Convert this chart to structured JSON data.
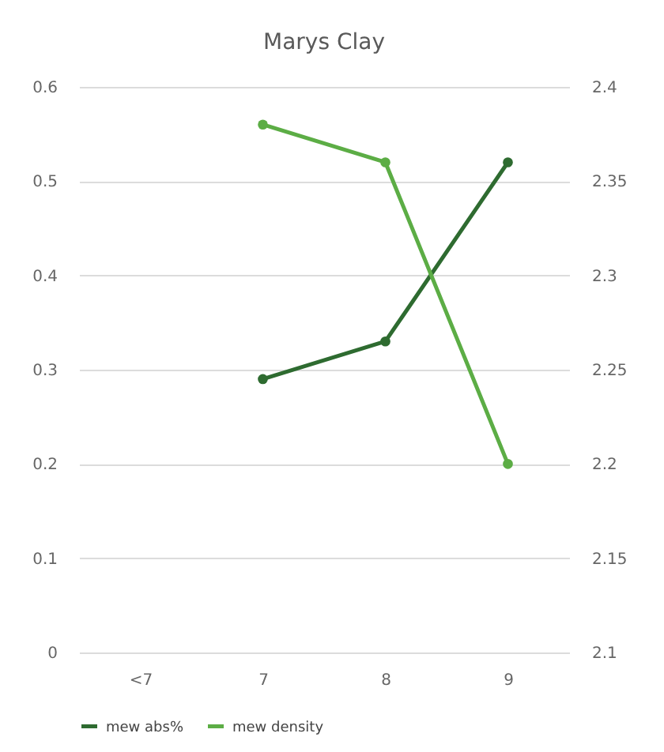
{
  "chart_data": {
    "type": "line",
    "title": "Marys Clay",
    "categories": [
      "<7",
      "7",
      "8",
      "9"
    ],
    "series": [
      {
        "name": "mew abs%",
        "color": "#2e6b30",
        "values": [
          null,
          0.29,
          0.33,
          0.52
        ]
      },
      {
        "name": "mew density",
        "color": "#5cad45",
        "values": [
          null,
          2.38,
          2.36,
          2.2
        ],
        "axis": "y2"
      }
    ],
    "ylim": [
      0,
      0.6
    ],
    "yticks": [
      0,
      0.1,
      0.2,
      0.3,
      0.4,
      0.5,
      0.6
    ],
    "y2lim": [
      2.1,
      2.4
    ],
    "y2ticks": [
      2.1,
      2.15,
      2.2,
      2.25,
      2.3,
      2.35,
      2.4
    ],
    "grid": "y",
    "legend": "bottom",
    "marker": "circle",
    "line_style": "solid"
  }
}
